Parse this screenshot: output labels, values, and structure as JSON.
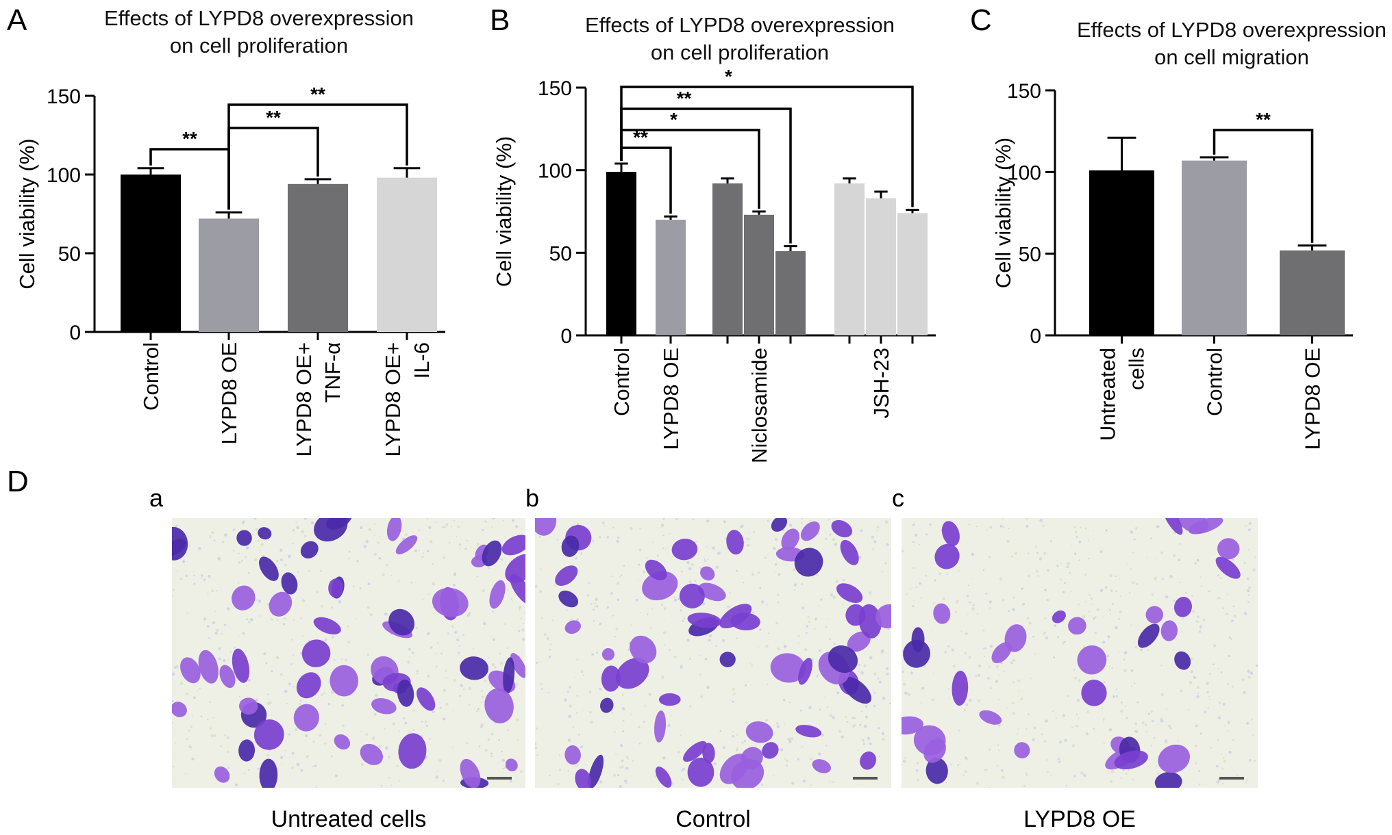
{
  "panel_labels": {
    "A": "A",
    "B": "B",
    "C": "C",
    "D": "D"
  },
  "panel_D": {
    "sublabels": [
      "a",
      "b",
      "c"
    ],
    "captions": [
      "Untreated cells",
      "Control",
      "LYPD8 OE"
    ],
    "stain_color": "#7a3fd0",
    "background_color": "#eef0e6"
  },
  "chart_data": [
    {
      "type": "bar",
      "title": [
        "Effects of LYPD8 overexpression",
        "on cell proliferation"
      ],
      "ylabel": "Cell viability (%)",
      "ylim": [
        0,
        150
      ],
      "yticks": [
        0,
        50,
        100,
        150
      ],
      "categories": [
        [
          "Control"
        ],
        [
          "LYPD8 OE"
        ],
        [
          "LYPD8 OE+",
          "TNF-α"
        ],
        [
          "LYPD8 OE+",
          "IL-6"
        ]
      ],
      "values": [
        100,
        72,
        94,
        98
      ],
      "errors": [
        4,
        4,
        3,
        6
      ],
      "colors": [
        "#000000",
        "#9c9ca4",
        "#6f6f71",
        "#d6d6d6"
      ],
      "significance": [
        {
          "from": 0,
          "to": 1,
          "label": "**"
        },
        {
          "from": 1,
          "to": 2,
          "label": "**"
        },
        {
          "from": 1,
          "to": 3,
          "label": "**"
        }
      ]
    },
    {
      "type": "bar",
      "title": [
        "Effects of LYPD8 overexpression",
        "on cell proliferation"
      ],
      "ylabel": "Cell viability (%)",
      "ylim": [
        0,
        150
      ],
      "yticks": [
        0,
        50,
        100,
        150
      ],
      "category_labels": [
        "Control",
        "LYPD8 OE",
        "",
        "Niclosamide",
        "",
        "",
        "JSH-23",
        ""
      ],
      "values": [
        99,
        70,
        92,
        73,
        51,
        92,
        83,
        74
      ],
      "errors": [
        5,
        2,
        3,
        2,
        3,
        3,
        4,
        2
      ],
      "colors": [
        "#000000",
        "#9c9ca4",
        "#6f6f71",
        "#6f6f71",
        "#6f6f71",
        "#d6d6d6",
        "#d6d6d6",
        "#d6d6d6"
      ],
      "significance": [
        {
          "from": 0,
          "to": 1,
          "label": "**"
        },
        {
          "from": 0,
          "to": 3,
          "label": "*"
        },
        {
          "from": 0,
          "to": 4,
          "label": "**"
        },
        {
          "from": 0,
          "to": 7,
          "label": "*"
        }
      ]
    },
    {
      "type": "bar",
      "title": [
        "Effects of LYPD8 overexpression",
        "on cell migration"
      ],
      "ylabel": "Cell viability (%)",
      "ylim": [
        0,
        150
      ],
      "yticks": [
        0,
        50,
        100,
        150
      ],
      "categories": [
        [
          "Untreated",
          "cells"
        ],
        [
          "Control"
        ],
        [
          "LYPD8 OE"
        ]
      ],
      "values": [
        101,
        107,
        52
      ],
      "errors": [
        20,
        2,
        3
      ],
      "colors": [
        "#000000",
        "#9c9ca4",
        "#6f6f71"
      ],
      "significance": [
        {
          "from": 1,
          "to": 2,
          "label": "**"
        }
      ]
    }
  ]
}
